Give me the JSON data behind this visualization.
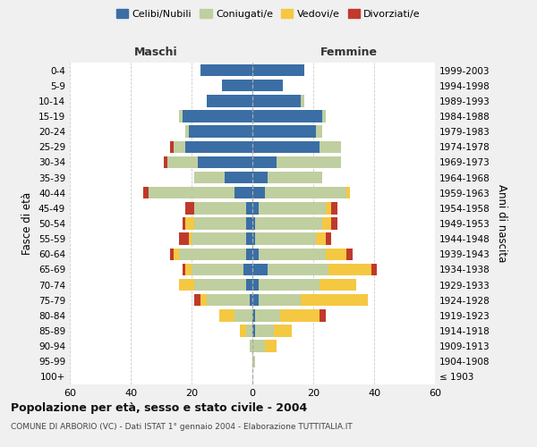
{
  "age_groups": [
    "100+",
    "95-99",
    "90-94",
    "85-89",
    "80-84",
    "75-79",
    "70-74",
    "65-69",
    "60-64",
    "55-59",
    "50-54",
    "45-49",
    "40-44",
    "35-39",
    "30-34",
    "25-29",
    "20-24",
    "15-19",
    "10-14",
    "5-9",
    "0-4"
  ],
  "birth_years": [
    "≤ 1903",
    "1904-1908",
    "1909-1913",
    "1914-1918",
    "1919-1923",
    "1924-1928",
    "1929-1933",
    "1934-1938",
    "1939-1943",
    "1944-1948",
    "1949-1953",
    "1954-1958",
    "1959-1963",
    "1964-1968",
    "1969-1973",
    "1974-1978",
    "1979-1983",
    "1984-1988",
    "1989-1993",
    "1994-1998",
    "1999-2003"
  ],
  "males": {
    "celibi": [
      0,
      0,
      0,
      0,
      0,
      1,
      2,
      3,
      2,
      2,
      2,
      2,
      6,
      9,
      18,
      22,
      21,
      23,
      15,
      10,
      17
    ],
    "coniugati": [
      0,
      0,
      1,
      2,
      6,
      14,
      17,
      17,
      22,
      18,
      17,
      17,
      28,
      10,
      10,
      4,
      1,
      1,
      0,
      0,
      0
    ],
    "vedovi": [
      0,
      0,
      0,
      2,
      5,
      2,
      5,
      2,
      2,
      1,
      3,
      0,
      0,
      0,
      0,
      0,
      0,
      0,
      0,
      0,
      0
    ],
    "divorziati": [
      0,
      0,
      0,
      0,
      0,
      2,
      0,
      1,
      1,
      3,
      1,
      3,
      2,
      0,
      1,
      1,
      0,
      0,
      0,
      0,
      0
    ]
  },
  "females": {
    "nubili": [
      0,
      0,
      0,
      1,
      1,
      2,
      2,
      5,
      2,
      1,
      1,
      2,
      4,
      5,
      8,
      22,
      21,
      23,
      16,
      10,
      17
    ],
    "coniugate": [
      0,
      1,
      4,
      6,
      8,
      14,
      20,
      20,
      22,
      20,
      22,
      22,
      27,
      18,
      21,
      7,
      2,
      1,
      1,
      0,
      0
    ],
    "vedove": [
      0,
      0,
      4,
      6,
      13,
      22,
      12,
      14,
      7,
      3,
      3,
      2,
      1,
      0,
      0,
      0,
      0,
      0,
      0,
      0,
      0
    ],
    "divorziate": [
      0,
      0,
      0,
      0,
      2,
      0,
      0,
      2,
      2,
      2,
      2,
      2,
      0,
      0,
      0,
      0,
      0,
      0,
      0,
      0,
      0
    ]
  },
  "colors": {
    "celibi": "#3A6EA5",
    "coniugati": "#BFCF9F",
    "vedovi": "#F5C842",
    "divorziati": "#C0392B"
  },
  "title": "Popolazione per età, sesso e stato civile - 2004",
  "subtitle": "COMUNE DI ARBORIO (VC) - Dati ISTAT 1° gennaio 2004 - Elaborazione TUTTITALIA.IT",
  "ylabel_left": "Fasce di età",
  "ylabel_right": "Anni di nascita",
  "xlabel_maschi": "Maschi",
  "xlabel_femmine": "Femmine",
  "xlim": 60,
  "bg_color": "#f0f0f0",
  "plot_bg": "#ffffff",
  "legend_labels": [
    "Celibi/Nubili",
    "Coniugati/e",
    "Vedovi/e",
    "Divorziati/e"
  ]
}
